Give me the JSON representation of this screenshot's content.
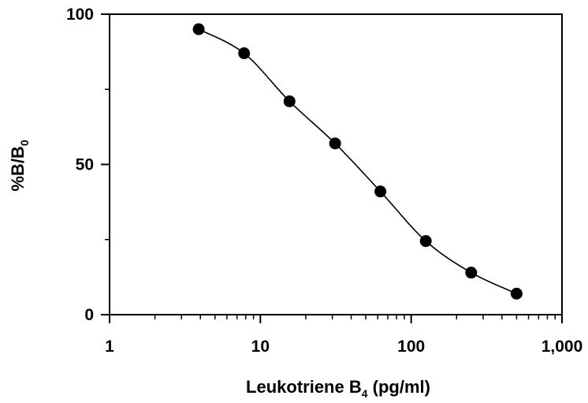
{
  "chart_data": {
    "type": "scatter",
    "xlabel": "Leukotriene B",
    "xlabel_sub": "4",
    "xlabel_suffix": " (pg/ml)",
    "ylabel": "%B/B",
    "ylabel_sub": "0",
    "x_scale": "log",
    "xlim": [
      1,
      1000
    ],
    "ylim": [
      0,
      100
    ],
    "x_ticks": [
      1,
      10,
      100,
      1000
    ],
    "x_tick_labels": [
      "1",
      "10",
      "100",
      "1,000"
    ],
    "y_ticks": [
      0,
      50,
      100
    ],
    "y_tick_labels": [
      "0",
      "50",
      "100"
    ],
    "grid": false,
    "fit_curve": true,
    "x": [
      3.9,
      7.8,
      15.6,
      31.3,
      62.5,
      125,
      250,
      500
    ],
    "y": [
      95,
      87,
      71,
      57,
      41,
      24.5,
      14,
      7
    ],
    "colors": {
      "marker": "#000000",
      "line": "#000000"
    }
  }
}
